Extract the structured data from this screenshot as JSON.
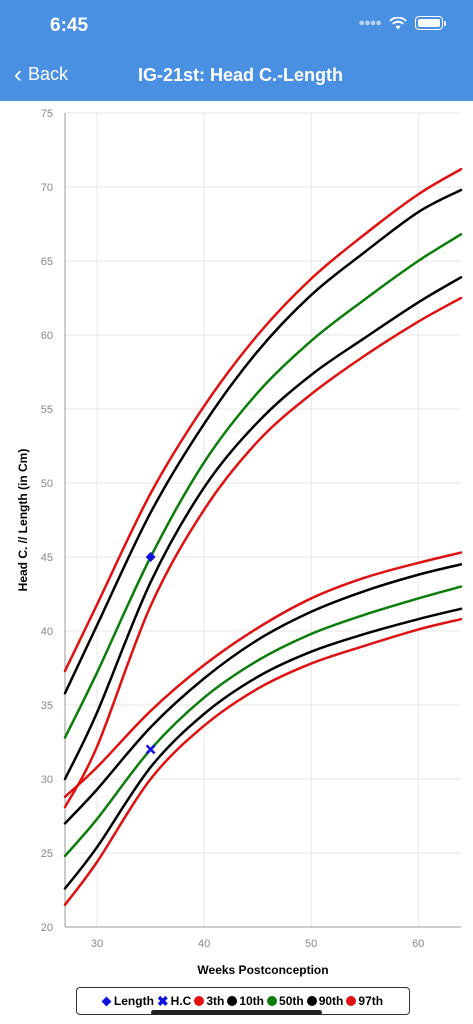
{
  "status_bar": {
    "time": "6:45"
  },
  "nav": {
    "back_label": "Back",
    "title": "IG-21st: Head C.-Length"
  },
  "colors": {
    "header": "#4a90e2",
    "red": "#e01010",
    "black": "#000000",
    "green": "#0a7d0a",
    "blue": "#1010e0"
  },
  "chart_data": {
    "type": "line",
    "title": "",
    "xlabel": "Weeks Postconception",
    "ylabel": "Head C. // Length (in Cm)",
    "xlim": [
      27,
      64
    ],
    "ylim": [
      20,
      75
    ],
    "x_ticks": [
      30,
      40,
      50,
      60
    ],
    "y_ticks": [
      20,
      25,
      30,
      35,
      40,
      45,
      50,
      55,
      60,
      65,
      70,
      75
    ],
    "grid": true,
    "legend_position": "bottom",
    "x": [
      27,
      30,
      35,
      40,
      45,
      50,
      55,
      60,
      64
    ],
    "series": [
      {
        "group": "length",
        "name": "3th",
        "color": "#e01010",
        "values": [
          28.1,
          32.2,
          41.7,
          48.2,
          52.8,
          56.0,
          58.6,
          60.9,
          62.5
        ]
      },
      {
        "group": "length",
        "name": "10th",
        "color": "#000000",
        "values": [
          30.0,
          34.5,
          43.3,
          49.7,
          54.1,
          57.3,
          59.8,
          62.2,
          63.9
        ]
      },
      {
        "group": "length",
        "name": "50th",
        "color": "#0a7d0a",
        "values": [
          32.8,
          37.2,
          45.0,
          51.4,
          56.1,
          59.6,
          62.4,
          65.0,
          66.8
        ]
      },
      {
        "group": "length",
        "name": "90th",
        "color": "#000000",
        "values": [
          35.8,
          40.4,
          48.0,
          54.0,
          58.9,
          62.7,
          65.6,
          68.3,
          69.8
        ]
      },
      {
        "group": "length",
        "name": "97th",
        "color": "#e01010",
        "values": [
          37.3,
          41.8,
          49.3,
          55.2,
          60.0,
          63.8,
          66.8,
          69.5,
          71.2
        ]
      },
      {
        "group": "hc",
        "name": "3th",
        "color": "#e01010",
        "values": [
          21.5,
          24.4,
          30.0,
          33.6,
          36.1,
          37.8,
          39.0,
          40.1,
          40.8
        ]
      },
      {
        "group": "hc",
        "name": "10th",
        "color": "#000000",
        "values": [
          22.6,
          25.4,
          30.8,
          34.4,
          36.9,
          38.6,
          39.8,
          40.8,
          41.5
        ]
      },
      {
        "group": "hc",
        "name": "50th",
        "color": "#0a7d0a",
        "values": [
          24.8,
          27.3,
          32.0,
          35.5,
          38.0,
          39.8,
          41.1,
          42.2,
          43.0
        ]
      },
      {
        "group": "hc",
        "name": "90th",
        "color": "#000000",
        "values": [
          27.0,
          29.3,
          33.5,
          36.8,
          39.4,
          41.3,
          42.7,
          43.8,
          44.5
        ]
      },
      {
        "group": "hc",
        "name": "97th",
        "color": "#e01010",
        "values": [
          28.8,
          30.8,
          34.6,
          37.7,
          40.2,
          42.2,
          43.6,
          44.6,
          45.3
        ]
      }
    ],
    "points": [
      {
        "name": "Length",
        "marker": "diamond",
        "color": "#1010e0",
        "x": 35,
        "y": 45
      },
      {
        "name": "H.C",
        "marker": "x",
        "color": "#1010e0",
        "x": 35,
        "y": 32
      }
    ]
  },
  "legend": {
    "items": [
      {
        "label": "Length",
        "marker": "diamond",
        "color": "#1010e0"
      },
      {
        "label": "H.C",
        "marker": "x",
        "color": "#1010e0"
      },
      {
        "label": "3th",
        "marker": "dot",
        "color": "#e01010"
      },
      {
        "label": "10th",
        "marker": "dot",
        "color": "#000000"
      },
      {
        "label": "50th",
        "marker": "dot",
        "color": "#0a7d0a"
      },
      {
        "label": "90th",
        "marker": "dot",
        "color": "#000000"
      },
      {
        "label": "97th",
        "marker": "dot",
        "color": "#e01010"
      }
    ]
  }
}
